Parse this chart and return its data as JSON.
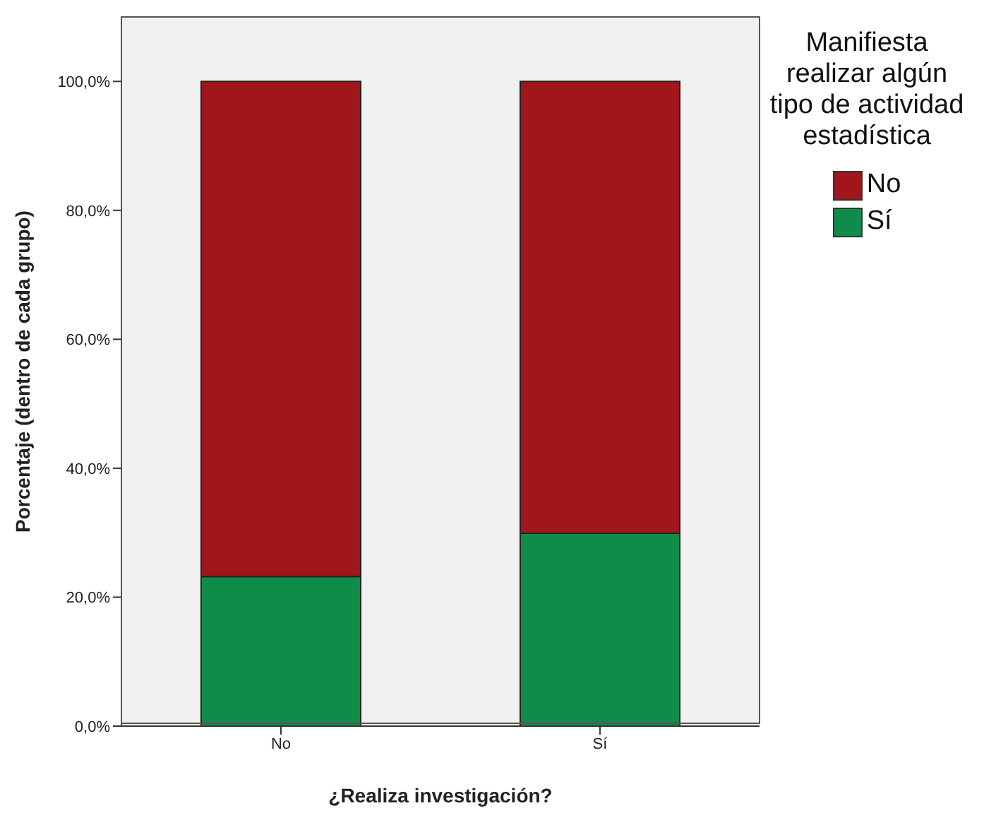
{
  "chart_data": {
    "type": "bar",
    "stacked": true,
    "xlabel": "¿Realiza investigación?",
    "ylabel": "Porcentaje (dentro de cada grupo)",
    "legend_title": "Manifiesta realizar algún tipo de actividad estadística",
    "legend": "right",
    "grid": false,
    "categories": [
      "No",
      "Sí"
    ],
    "series": [
      {
        "name": "Sí",
        "color": "#0f8c48",
        "values": [
          23.2,
          29.9
        ]
      },
      {
        "name": "No",
        "color": "#a0161a",
        "values": [
          76.8,
          70.1
        ]
      }
    ],
    "ylim": [
      0,
      110
    ],
    "yticks": [
      {
        "value": 0,
        "label": "0,0%"
      },
      {
        "value": 20,
        "label": "20,0%"
      },
      {
        "value": 40,
        "label": "40,0%"
      },
      {
        "value": 60,
        "label": "60,0%"
      },
      {
        "value": 80,
        "label": "80,0%"
      },
      {
        "value": 100,
        "label": "100,0%"
      }
    ]
  }
}
